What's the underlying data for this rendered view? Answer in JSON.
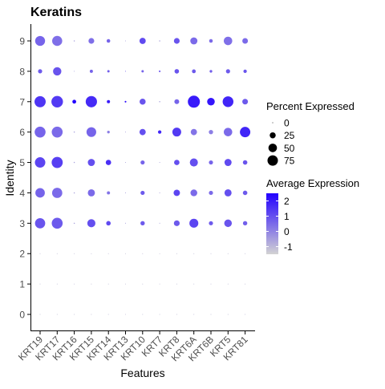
{
  "chart_data": {
    "type": "dotplot",
    "title": "Keratins",
    "xlabel": "Features",
    "ylabel": "Identity",
    "features": [
      "KRT19",
      "KRT17",
      "KRT16",
      "KRT15",
      "KRT14",
      "KRT13",
      "KRT10",
      "KRT7",
      "KRT8",
      "KRT6A",
      "KRT6B",
      "KRT5",
      "KRT81"
    ],
    "identities": [
      "0",
      "1",
      "2",
      "3",
      "4",
      "5",
      "6",
      "7",
      "8",
      "9"
    ],
    "percent_expressed": [
      [
        0.5,
        0.5,
        0.3,
        0.5,
        0.5,
        0.3,
        0.5,
        0.3,
        0.5,
        0.5,
        0.5,
        0.5,
        0.5
      ],
      [
        0.5,
        0.5,
        0.3,
        0.5,
        0.5,
        0.3,
        0.5,
        0.3,
        0.5,
        0.5,
        0.5,
        0.5,
        0.5
      ],
      [
        0.5,
        0.5,
        0.3,
        0.5,
        0.5,
        0.3,
        0.5,
        0.3,
        0.5,
        0.5,
        0.5,
        0.5,
        0.5
      ],
      [
        72,
        82,
        1,
        45,
        14,
        0.5,
        13,
        0.5,
        23,
        55,
        12,
        40,
        13
      ],
      [
        62,
        72,
        1,
        35,
        7,
        0.5,
        12,
        0.5,
        28,
        32,
        12,
        35,
        14
      ],
      [
        75,
        85,
        1,
        35,
        20,
        0.5,
        12,
        0.5,
        20,
        45,
        12,
        35,
        14
      ],
      [
        82,
        82,
        1,
        65,
        5,
        0.5,
        27,
        8,
        54,
        27,
        13,
        50,
        75
      ],
      [
        86,
        92,
        10,
        88,
        7,
        2,
        25,
        1,
        16,
        100,
        40,
        80,
        22
      ],
      [
        12,
        48,
        0.5,
        7,
        4,
        0.5,
        4,
        2,
        14,
        10,
        5,
        12,
        8
      ],
      [
        68,
        70,
        1,
        23,
        9,
        0.5,
        27,
        1,
        23,
        35,
        9,
        50,
        22
      ]
    ],
    "average_expression": [
      [
        -1.1,
        -1.1,
        -1.1,
        -1.1,
        -1.1,
        -1.1,
        -1.1,
        -1.1,
        -1.1,
        -1.1,
        -1.1,
        -1.1,
        -1.1
      ],
      [
        -1.1,
        -1.1,
        -1.1,
        -1.1,
        -1.1,
        -1.1,
        -1.1,
        -1.1,
        -1.1,
        -1.1,
        -1.1,
        -1.1,
        -1.1
      ],
      [
        -1.1,
        -1.1,
        -1.1,
        -1.1,
        -1.1,
        -1.1,
        -1.1,
        -1.1,
        -1.1,
        -1.1,
        -1.1,
        -1.1,
        -1.1
      ],
      [
        0.9,
        0.8,
        -0.6,
        1.0,
        1.1,
        -0.6,
        0.8,
        -0.6,
        0.8,
        1.2,
        0.8,
        0.9,
        0.7
      ],
      [
        0.6,
        0.5,
        -0.6,
        0.5,
        0.3,
        -0.6,
        0.8,
        -0.6,
        1.2,
        0.5,
        0.5,
        1.0,
        0.8
      ],
      [
        1.2,
        1.3,
        -0.6,
        1.0,
        1.6,
        -0.6,
        0.6,
        -0.6,
        1.0,
        1.0,
        0.6,
        1.1,
        0.9
      ],
      [
        0.6,
        0.5,
        -0.6,
        0.6,
        0.1,
        -0.6,
        1.0,
        1.8,
        1.4,
        0.3,
        0.1,
        0.5,
        1.8
      ],
      [
        1.5,
        1.4,
        2.5,
        1.7,
        2.0,
        2.3,
        0.9,
        -0.6,
        0.6,
        2.0,
        2.1,
        1.8,
        0.8
      ],
      [
        0.8,
        0.9,
        -0.6,
        0.6,
        0.7,
        0.6,
        0.6,
        0.9,
        0.9,
        0.8,
        0.7,
        0.8,
        0.9
      ],
      [
        0.6,
        0.4,
        -0.6,
        0.4,
        0.6,
        -0.6,
        1.1,
        -0.6,
        0.9,
        0.5,
        0.5,
        0.4,
        0.5
      ]
    ],
    "legend_size": {
      "title": "Percent Expressed",
      "values": [
        0,
        25,
        50,
        75
      ],
      "labels": [
        "0",
        "25",
        "50",
        "75"
      ]
    },
    "legend_color": {
      "title": "Average Expression",
      "min": -1.5,
      "max": 2.5,
      "ticks": [
        -1,
        0,
        1,
        2
      ],
      "labels": [
        "-1",
        "0",
        "1",
        "2"
      ],
      "low_color": "#d3d3d3",
      "high_color": "#2200ff"
    }
  }
}
